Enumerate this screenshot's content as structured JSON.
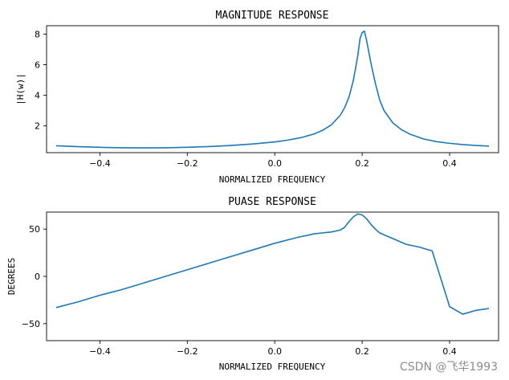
{
  "chart_data": [
    {
      "type": "line",
      "title": "MAGNITUDE RESPONSE",
      "xlabel": "NORMALIZED FREQUENCY",
      "ylabel": "|H(w)|",
      "xlim": [
        -0.522,
        0.512
      ],
      "ylim": [
        0.25,
        8.55
      ],
      "xticks": [
        -0.4,
        -0.2,
        0.0,
        0.2,
        0.4
      ],
      "xtick_labels": [
        "−0.4",
        "−0.2",
        "0.0",
        "0.2",
        "0.4"
      ],
      "yticks": [
        2,
        4,
        6,
        8
      ],
      "ytick_labels": [
        "2",
        "4",
        "6",
        "8"
      ],
      "series": [
        {
          "name": "magnitude",
          "color": "#1f77b4",
          "x": [
            -0.5,
            -0.45,
            -0.4,
            -0.35,
            -0.3,
            -0.25,
            -0.2,
            -0.15,
            -0.1,
            -0.05,
            0.0,
            0.03,
            0.06,
            0.09,
            0.11,
            0.13,
            0.15,
            0.16,
            0.17,
            0.18,
            0.19,
            0.195,
            0.2,
            0.205,
            0.21,
            0.22,
            0.23,
            0.24,
            0.25,
            0.27,
            0.29,
            0.31,
            0.34,
            0.37,
            0.4,
            0.43,
            0.46,
            0.49
          ],
          "y": [
            0.7,
            0.64,
            0.6,
            0.57,
            0.56,
            0.57,
            0.6,
            0.65,
            0.72,
            0.82,
            0.95,
            1.07,
            1.23,
            1.47,
            1.72,
            2.08,
            2.7,
            3.2,
            3.9,
            5.0,
            6.6,
            7.7,
            8.1,
            8.2,
            7.6,
            6.1,
            4.8,
            3.7,
            3.0,
            2.2,
            1.75,
            1.45,
            1.15,
            0.97,
            0.86,
            0.78,
            0.72,
            0.68
          ]
        }
      ]
    },
    {
      "type": "line",
      "title": "PUASE RESPONSE",
      "xlabel": "NORMALIZED FREQUENCY",
      "ylabel": "DEGREES",
      "xlim": [
        -0.522,
        0.512
      ],
      "ylim": [
        -68,
        68
      ],
      "xticks": [
        -0.4,
        -0.2,
        0.0,
        0.2,
        0.4
      ],
      "xtick_labels": [
        "−0.4",
        "−0.2",
        "0.0",
        "0.2",
        "0.4"
      ],
      "yticks": [
        -50,
        0,
        50
      ],
      "ytick_labels": [
        "−50",
        "0",
        "50"
      ],
      "series": [
        {
          "name": "phase",
          "color": "#1f77b4",
          "x": [
            -0.5,
            -0.45,
            -0.4,
            -0.35,
            -0.3,
            -0.25,
            -0.2,
            -0.15,
            -0.1,
            -0.05,
            0.0,
            0.05,
            0.09,
            0.11,
            0.13,
            0.14,
            0.15,
            0.16,
            0.17,
            0.18,
            0.19,
            0.2,
            0.21,
            0.22,
            0.23,
            0.24,
            0.26,
            0.28,
            0.3,
            0.33,
            0.36,
            0.4,
            0.43,
            0.46,
            0.49
          ],
          "y": [
            -33,
            -27,
            -20,
            -14,
            -7,
            0,
            7,
            14,
            21,
            28,
            35,
            41,
            45,
            46,
            47,
            48,
            49,
            52,
            58,
            63,
            66,
            65,
            61,
            55,
            50,
            46,
            42,
            38,
            34,
            31,
            27,
            -32,
            -40,
            -36,
            -34
          ]
        }
      ]
    }
  ],
  "watermark": "CSDN @飞华1993"
}
